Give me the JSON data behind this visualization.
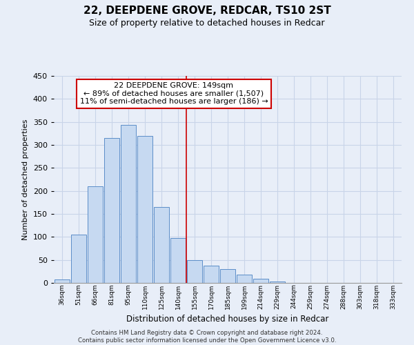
{
  "title": "22, DEEPDENE GROVE, REDCAR, TS10 2ST",
  "subtitle": "Size of property relative to detached houses in Redcar",
  "xlabel": "Distribution of detached houses by size in Redcar",
  "ylabel": "Number of detached properties",
  "bar_labels": [
    "36sqm",
    "51sqm",
    "66sqm",
    "81sqm",
    "95sqm",
    "110sqm",
    "125sqm",
    "140sqm",
    "155sqm",
    "170sqm",
    "185sqm",
    "199sqm",
    "214sqm",
    "229sqm",
    "244sqm",
    "259sqm",
    "274sqm",
    "288sqm",
    "303sqm",
    "318sqm",
    "333sqm"
  ],
  "bar_values": [
    7,
    105,
    210,
    315,
    343,
    319,
    165,
    97,
    50,
    37,
    30,
    18,
    9,
    3,
    0,
    0,
    0,
    0,
    0,
    0,
    0
  ],
  "bar_color": "#c6d9f1",
  "bar_edge_color": "#5b8dc8",
  "vline_color": "#cc0000",
  "annotation_title": "22 DEEPDENE GROVE: 149sqm",
  "annotation_line1": "← 89% of detached houses are smaller (1,507)",
  "annotation_line2": "11% of semi-detached houses are larger (186) →",
  "annotation_box_color": "#ffffff",
  "annotation_box_edge": "#cc0000",
  "ylim": [
    0,
    450
  ],
  "yticks": [
    0,
    50,
    100,
    150,
    200,
    250,
    300,
    350,
    400,
    450
  ],
  "grid_color": "#c8d4e8",
  "background_color": "#e8eef8",
  "footer_line1": "Contains HM Land Registry data © Crown copyright and database right 2024.",
  "footer_line2": "Contains public sector information licensed under the Open Government Licence v3.0."
}
